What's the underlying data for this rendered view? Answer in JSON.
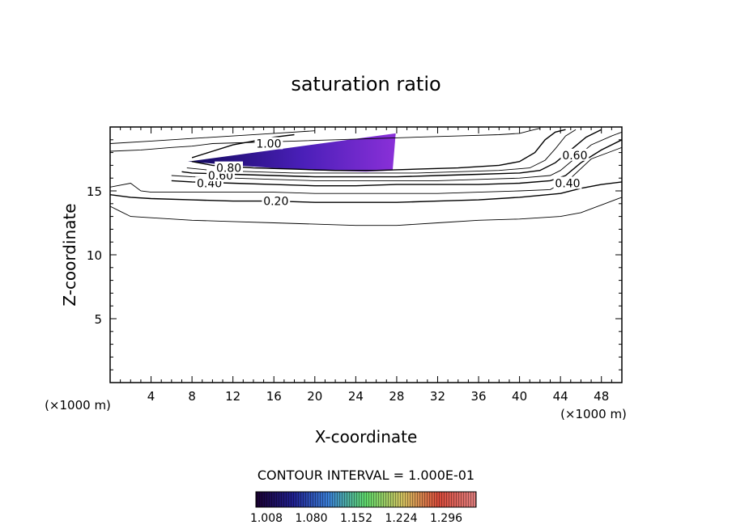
{
  "chart_data": {
    "type": "contour",
    "title": "saturation ratio",
    "xlabel": "X-coordinate",
    "ylabel": "Z-coordinate",
    "x_unit": "(×1000 m)",
    "z_unit": "(×1000 m)",
    "xlim": [
      0,
      50
    ],
    "ylim": [
      0,
      20
    ],
    "x_ticks": [
      4,
      8,
      12,
      16,
      20,
      24,
      28,
      32,
      36,
      40,
      44,
      48
    ],
    "y_ticks": [
      5,
      10,
      15
    ],
    "grid": false,
    "contour_interval_label": "CONTOUR INTERVAL = 1.000E-01",
    "contour_levels": [
      0.1,
      0.2,
      0.3,
      0.4,
      0.5,
      0.6,
      0.7,
      0.8,
      0.9,
      1.0
    ],
    "contour_labels": [
      {
        "text": "0.20",
        "x": 16.2,
        "z": 14.2
      },
      {
        "text": "0.40",
        "x": 9.7,
        "z": 15.6
      },
      {
        "text": "0.60",
        "x": 10.8,
        "z": 16.2
      },
      {
        "text": "0.80",
        "x": 11.6,
        "z": 16.8
      },
      {
        "text": "1.00",
        "x": 15.5,
        "z": 18.7
      },
      {
        "text": "0.40",
        "x": 44.7,
        "z": 15.6
      },
      {
        "text": "0.60",
        "x": 45.4,
        "z": 17.8
      }
    ],
    "contours": [
      {
        "level": 0.1,
        "x": [
          0,
          1,
          2,
          4,
          8,
          12,
          16,
          20,
          24,
          28,
          32,
          36,
          40,
          44,
          46,
          48,
          50
        ],
        "z": [
          13.8,
          13.4,
          13.0,
          12.9,
          12.7,
          12.6,
          12.5,
          12.4,
          12.3,
          12.3,
          12.5,
          12.7,
          12.8,
          13.0,
          13.3,
          13.9,
          14.5
        ]
      },
      {
        "level": 0.2,
        "x": [
          0,
          2,
          4,
          8,
          12,
          16,
          20,
          24,
          28,
          32,
          36,
          40,
          44,
          46,
          48,
          50
        ],
        "z": [
          14.7,
          14.5,
          14.4,
          14.3,
          14.2,
          14.2,
          14.1,
          14.1,
          14.1,
          14.2,
          14.3,
          14.5,
          14.8,
          15.2,
          15.5,
          15.7
        ]
      },
      {
        "level": 0.3,
        "x": [
          0,
          2,
          3,
          4,
          8,
          12,
          16,
          20,
          24,
          28,
          32,
          36,
          40,
          43,
          45,
          47,
          50
        ],
        "z": [
          15.3,
          15.6,
          15.0,
          14.9,
          14.9,
          14.9,
          14.9,
          14.8,
          14.8,
          14.8,
          14.8,
          14.9,
          15.0,
          15.1,
          16.0,
          17.5,
          18.4
        ]
      },
      {
        "level": 0.4,
        "x": [
          6,
          8,
          12,
          16,
          20,
          24,
          28,
          32,
          36,
          40,
          43,
          44.5,
          46,
          48,
          50
        ],
        "z": [
          15.8,
          15.7,
          15.6,
          15.5,
          15.4,
          15.4,
          15.5,
          15.5,
          15.5,
          15.6,
          15.8,
          16.2,
          17.2,
          18.2,
          19.0
        ]
      },
      {
        "level": 0.5,
        "x": [
          6,
          8,
          12,
          16,
          20,
          24,
          28,
          32,
          36,
          40,
          43,
          44,
          45.5,
          47,
          49,
          50
        ],
        "z": [
          16.2,
          16.1,
          16.0,
          15.9,
          15.8,
          15.8,
          15.8,
          15.8,
          15.9,
          16.0,
          16.2,
          16.6,
          17.6,
          18.6,
          19.3,
          19.6
        ]
      },
      {
        "level": 0.6,
        "x": [
          7,
          8,
          12,
          16,
          20,
          24,
          28,
          32,
          36,
          40,
          42,
          43.5,
          45,
          46.5,
          48
        ],
        "z": [
          16.5,
          16.4,
          16.3,
          16.2,
          16.1,
          16.1,
          16.1,
          16.2,
          16.3,
          16.4,
          16.6,
          17.2,
          18.2,
          19.2,
          19.8
        ]
      },
      {
        "level": 0.7,
        "x": [
          7.5,
          10,
          14,
          18,
          22,
          26,
          30,
          34,
          38,
          41,
          42.5,
          43.5,
          44.5,
          45.5
        ],
        "z": [
          16.8,
          16.6,
          16.5,
          16.4,
          16.4,
          16.4,
          16.4,
          16.5,
          16.6,
          16.8,
          17.4,
          18.3,
          19.3,
          19.8
        ]
      },
      {
        "level": 0.8,
        "x": [
          8,
          10,
          12,
          14,
          18,
          22,
          26,
          30,
          34,
          38,
          40,
          41.5,
          42.5,
          43.5,
          44.5
        ],
        "z": [
          17.3,
          17.0,
          16.9,
          16.8,
          16.7,
          16.6,
          16.6,
          16.7,
          16.8,
          17.0,
          17.3,
          18.0,
          19.0,
          19.6,
          19.8
        ]
      },
      {
        "level": 0.9,
        "x": [
          0,
          3,
          6,
          8,
          10,
          14,
          18,
          22,
          26,
          30,
          34,
          38,
          40,
          41,
          42
        ],
        "z": [
          18.1,
          18.2,
          18.4,
          18.5,
          18.7,
          18.8,
          18.9,
          19.0,
          19.1,
          19.2,
          19.3,
          19.4,
          19.5,
          19.7,
          19.9
        ]
      },
      {
        "level": 0.9,
        "x": [
          0,
          4,
          8,
          12,
          16,
          20
        ],
        "z": [
          18.7,
          18.9,
          19.1,
          19.3,
          19.5,
          19.7
        ]
      },
      {
        "level": 1.0,
        "x": [
          8,
          10,
          12,
          14,
          16,
          18
        ],
        "z": [
          17.6,
          18.1,
          18.6,
          18.9,
          19.2,
          19.4
        ]
      }
    ],
    "shaded_region": {
      "x": [
        7.6,
        27.9,
        27.6,
        25,
        20,
        16,
        12,
        9
      ],
      "z": [
        17.3,
        19.5,
        16.6,
        16.5,
        16.6,
        16.8,
        17.0,
        17.2
      ],
      "min_x_val": 7.6,
      "max_x_val": 27.9
    },
    "colorbar": {
      "ticks": [
        "1.008",
        "1.080",
        "1.152",
        "1.224",
        "1.296"
      ],
      "colors": [
        "#1a0030",
        "#1f1f8f",
        "#3a7fd6",
        "#5fd86a",
        "#d4c060",
        "#d84a3a",
        "#e08080"
      ]
    }
  }
}
